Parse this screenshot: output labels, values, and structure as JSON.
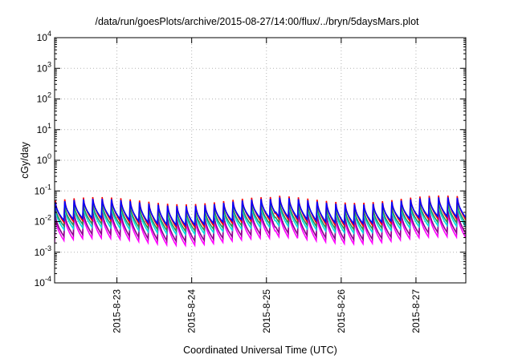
{
  "chart_data": {
    "type": "line",
    "title": "/data/run/goesPlots/archive/2015-08-27/14:00/flux/../bryn/5daysMars.plot",
    "xlabel": "Coordinated Universal Time (UTC)",
    "ylabel": "cGy/day",
    "y_scale": "log",
    "ylim": [
      0.0001,
      10000
    ],
    "xlim": [
      "2015-08-22 04:00",
      "2015-08-27 16:00"
    ],
    "y_ticks": [
      {
        "base": "10",
        "exp": "-4",
        "value": 0.0001
      },
      {
        "base": "10",
        "exp": "-3",
        "value": 0.001
      },
      {
        "base": "10",
        "exp": "-2",
        "value": 0.01
      },
      {
        "base": "10",
        "exp": "-1",
        "value": 0.1
      },
      {
        "base": "10",
        "exp": "0",
        "value": 1
      },
      {
        "base": "10",
        "exp": "1",
        "value": 10
      },
      {
        "base": "10",
        "exp": "2",
        "value": 100
      },
      {
        "base": "10",
        "exp": "3",
        "value": 1000
      },
      {
        "base": "10",
        "exp": "4",
        "value": 10000
      }
    ],
    "x_ticks": [
      "2015-8-23",
      "2015-8-24",
      "2015-8-25",
      "2015-8-26",
      "2015-8-27"
    ],
    "grid": true,
    "cycle_hours": 3,
    "series": [
      {
        "color": "#ff00ff",
        "peak": 0.015,
        "trough": 0.0022
      },
      {
        "color": "#8b008b",
        "peak": 0.019,
        "trough": 0.003
      },
      {
        "color": "#00e0e0",
        "peak": 0.028,
        "trough": 0.005
      },
      {
        "color": "#2e8b57",
        "peak": 0.033,
        "trough": 0.0065
      },
      {
        "color": "#ff0000",
        "peak": 0.052,
        "trough": 0.0085
      },
      {
        "color": "#0000ff",
        "peak": 0.045,
        "trough": 0.01
      }
    ]
  }
}
